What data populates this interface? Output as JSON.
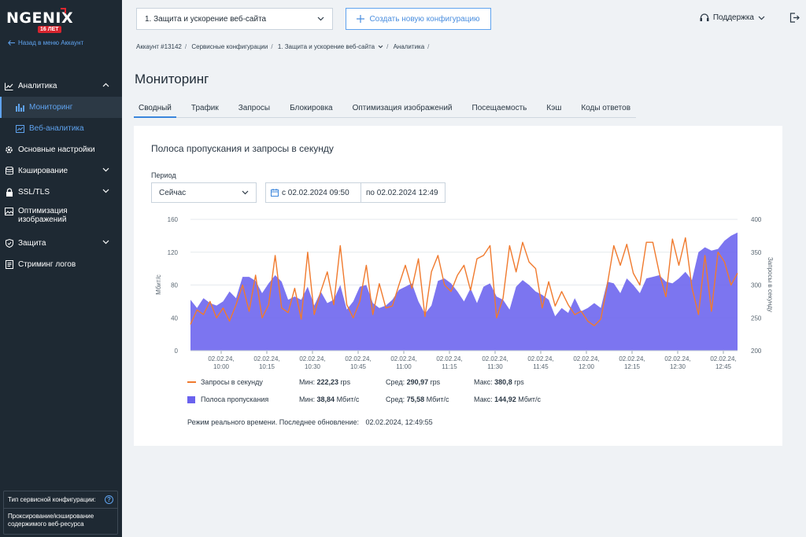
{
  "brand": {
    "name": "NGENIX",
    "badge": "16 ЛЕТ"
  },
  "sidebar": {
    "back_label": "Назад в меню Аккаунт",
    "items": [
      {
        "label": "Аналитика"
      },
      {
        "label": "Мониторинг"
      },
      {
        "label": "Веб-аналитика"
      },
      {
        "label": "Основные настройки"
      },
      {
        "label": "Кэширование"
      },
      {
        "label": "SSL/TLS"
      },
      {
        "label": "Оптимизация изображений"
      },
      {
        "label": "Защита"
      },
      {
        "label": "Стриминг логов"
      }
    ],
    "config_type_label": "Тип сервисной конфигурации:",
    "config_type_help": "?",
    "config_type_value": "Проксирование/кэширование содержимого веб-ресурса"
  },
  "header": {
    "site_select": "1. Защита и ускорение веб-сайта",
    "new_config": "Создать новую конфигурацию",
    "support": "Поддержка"
  },
  "breadcrumb": [
    "Аккаунт #13142",
    "Сервисные конфигурации",
    "1. Защита и ускорение веб-сайта",
    "Аналитика"
  ],
  "page_title": "Мониторинг",
  "tabs": [
    "Сводный",
    "Трафик",
    "Запросы",
    "Блокировка",
    "Оптимизация изображений",
    "Посещаемость",
    "Кэш",
    "Коды ответов"
  ],
  "card": {
    "title": "Полоса пропускания и запросы в секунду",
    "period_label": "Период",
    "period_value": "Сейчас",
    "date_from": "с 02.02.2024 09:50",
    "date_to": "по 02.02.2024 12:49"
  },
  "legend": {
    "rps": {
      "name": "Запросы в секунду",
      "min_label": "Мин:",
      "min": "222,23",
      "min_unit": "rps",
      "avg_label": "Сред:",
      "avg": "290,97",
      "avg_unit": "rps",
      "max_label": "Макс:",
      "max": "380,8",
      "max_unit": "rps"
    },
    "bw": {
      "name": "Полоса пропускания",
      "min_label": "Мин:",
      "min": "38,84",
      "min_unit": "Мбит/с",
      "avg_label": "Сред:",
      "avg": "75,58",
      "avg_unit": "Мбит/с",
      "max_label": "Макс:",
      "max": "144,92",
      "max_unit": "Мбит/с"
    },
    "realtime_label": "Режим реального времени.",
    "last_update_label": "Последнее обновление:",
    "last_update": "02.02.2024, 12:49:55"
  },
  "colors": {
    "accent": "#3a85dc",
    "area": "#6a62ee",
    "line": "#f07a2e",
    "sidebar": "#1e2933"
  },
  "chart_data": {
    "type": "area+line",
    "title": "Полоса пропускания и запросы в секунду",
    "ylabel": "Мбит/с",
    "y2label": "Запросы в секунду",
    "ylim": [
      0,
      160
    ],
    "y2lim": [
      200,
      400
    ],
    "yticks": [
      "0",
      "40",
      "80",
      "120",
      "160"
    ],
    "y2ticks": [
      "200",
      "250",
      "300",
      "350",
      "400"
    ],
    "xticks": [
      "02.02.24, 10:00",
      "02.02.24, 10:15",
      "02.02.24, 10:30",
      "02.02.24, 10:45",
      "02.02.24, 11:00",
      "02.02.24, 11:15",
      "02.02.24, 11:30",
      "02.02.24, 11:45",
      "02.02.24, 12:00",
      "02.02.24, 12:15",
      "02.02.24, 12:30",
      "02.02.24, 12:45"
    ],
    "series": [
      {
        "name": "Полоса пропускания",
        "axis": "left",
        "values": [
          62,
          52,
          64,
          58,
          55,
          60,
          72,
          64,
          90,
          90,
          85,
          70,
          82,
          92,
          84,
          62,
          66,
          62,
          78,
          55,
          72,
          58,
          62,
          80,
          50,
          60,
          78,
          80,
          58,
          52,
          55,
          62,
          74,
          78,
          82,
          60,
          45,
          55,
          85,
          88,
          82,
          72,
          60,
          76,
          58,
          78,
          82,
          66,
          62,
          50,
          78,
          86,
          80,
          72,
          68,
          62,
          42,
          52,
          46,
          64,
          48,
          52,
          58,
          52,
          84,
          82,
          70,
          88,
          80,
          70,
          88,
          90,
          92,
          84,
          82,
          88,
          96,
          86,
          120,
          126,
          122,
          124,
          134,
          140,
          144
        ]
      },
      {
        "name": "Запросы в секунду",
        "axis": "right",
        "values": [
          240,
          262,
          255,
          275,
          250,
          265,
          245,
          270,
          300,
          260,
          315,
          250,
          270,
          345,
          265,
          258,
          295,
          248,
          350,
          255,
          290,
          320,
          270,
          360,
          270,
          250,
          275,
          330,
          255,
          302,
          265,
          268,
          300,
          330,
          295,
          340,
          252,
          320,
          345,
          300,
          290,
          315,
          330,
          292,
          340,
          345,
          360,
          250,
          280,
          360,
          320,
          365,
          335,
          325,
          265,
          305,
          268,
          290,
          270,
          255,
          260,
          245,
          238,
          248,
          300,
          360,
          330,
          362,
          318,
          300,
          365,
          365,
          318,
          282,
          370,
          330,
          372,
          296,
          255,
          345,
          260,
          350,
          335,
          300,
          318
        ]
      }
    ]
  }
}
